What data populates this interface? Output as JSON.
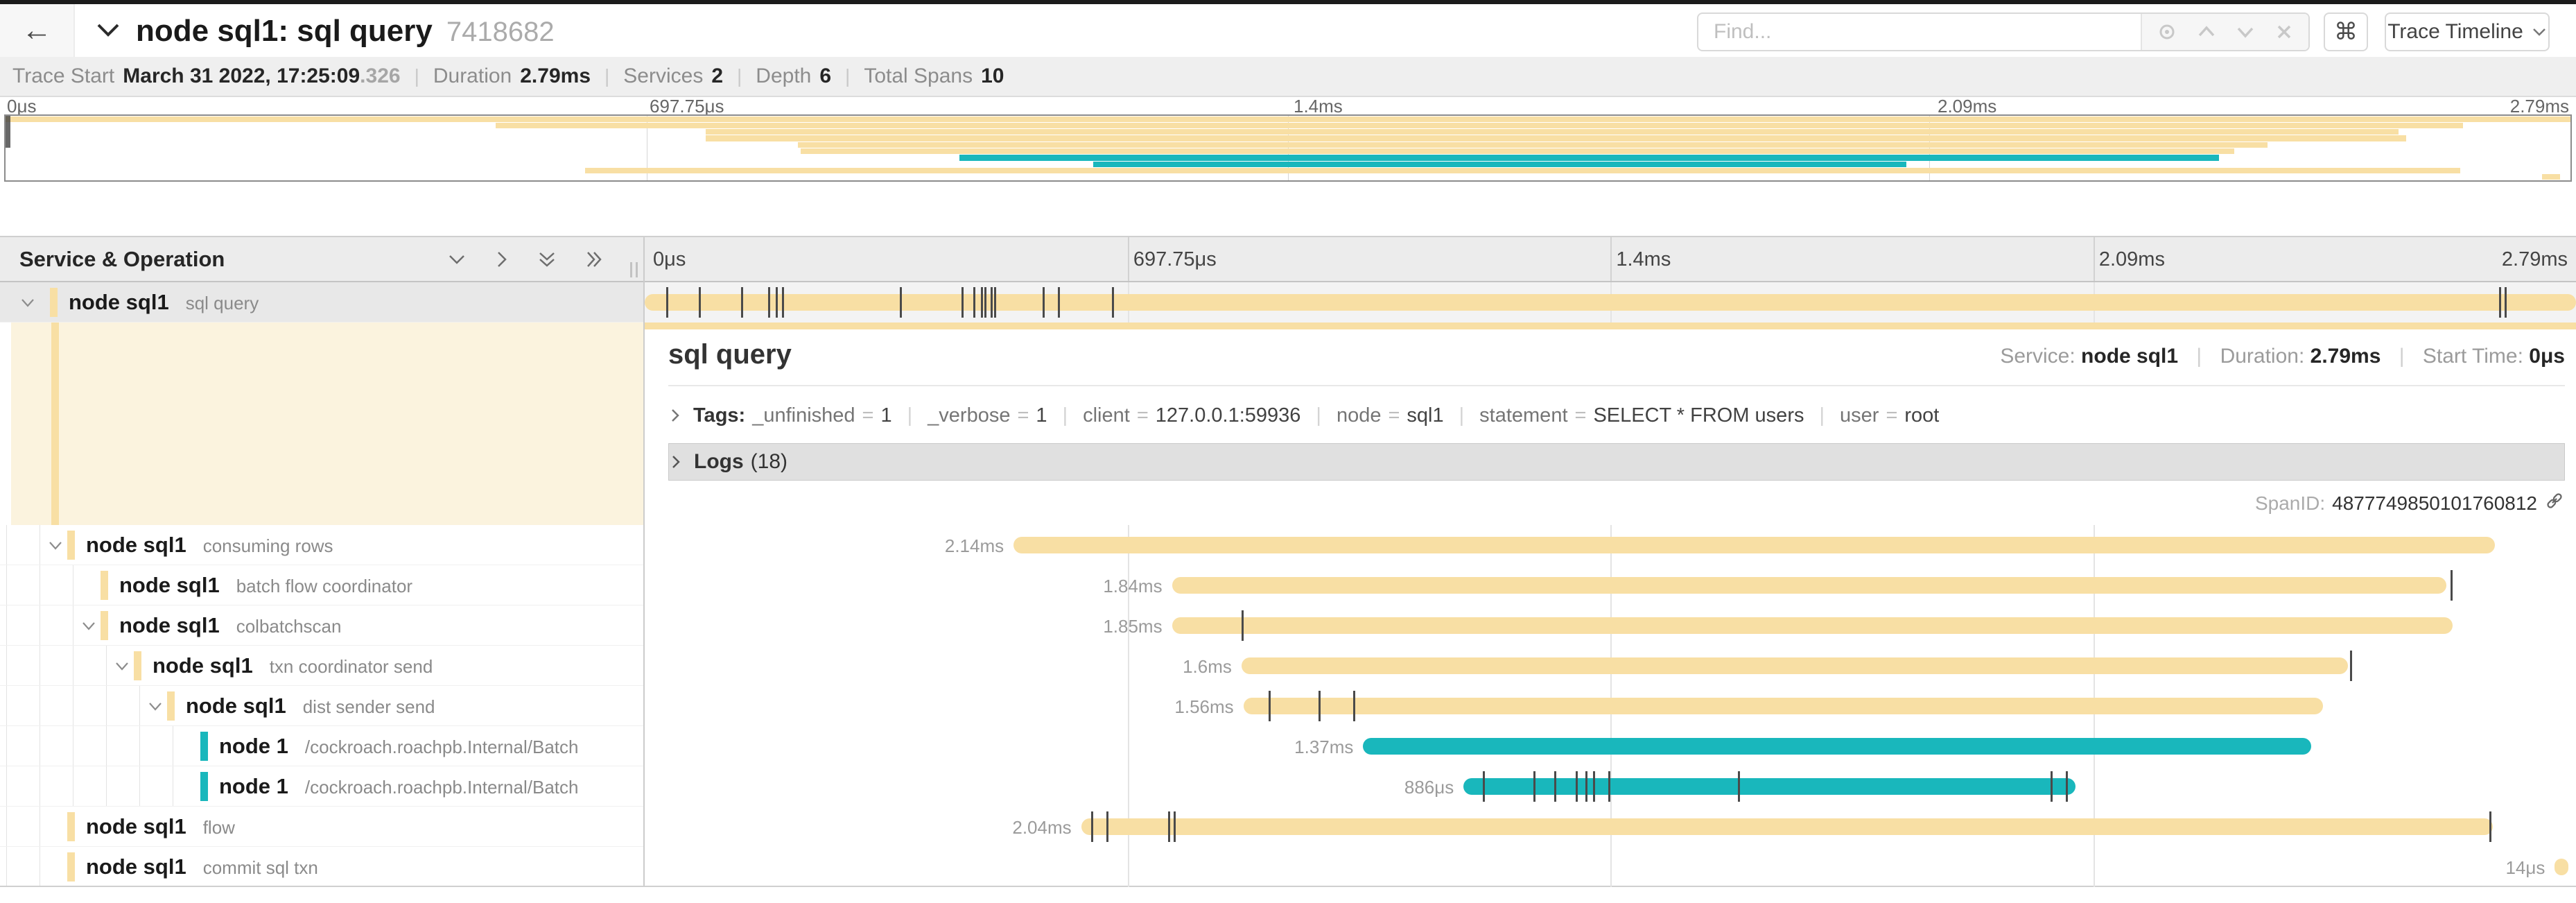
{
  "colors": {
    "yellow": "#F8DFA4",
    "teal": "#19B7BC"
  },
  "header": {
    "back_glyph": "←",
    "title": "node sql1: sql query",
    "trace_id": "7418682",
    "find_placeholder": "Find...",
    "cmd_glyph": "⌘",
    "trace_timeline_label": "Trace Timeline"
  },
  "stats": {
    "items": [
      {
        "label": "Trace Start",
        "value": "March 31 2022, 17:25:09",
        "suffix": ".326"
      },
      {
        "label": "Duration",
        "value": "2.79ms",
        "suffix": ""
      },
      {
        "label": "Services",
        "value": "2",
        "suffix": ""
      },
      {
        "label": "Depth",
        "value": "6",
        "suffix": ""
      },
      {
        "label": "Total Spans",
        "value": "10",
        "suffix": ""
      }
    ]
  },
  "ruler": {
    "ticks": [
      "0μs",
      "697.75μs",
      "1.4ms",
      "2.09ms",
      "2.79ms"
    ]
  },
  "tree": {
    "header_label": "Service & Operation"
  },
  "detail": {
    "title": "sql query",
    "service_label": "Service:",
    "service": "node sql1",
    "duration_label": "Duration:",
    "duration": "2.79ms",
    "start_time_label": "Start Time:",
    "start_time": "0μs",
    "tags_label": "Tags:",
    "tags": [
      {
        "key": "_unfinished",
        "value": "1"
      },
      {
        "key": "_verbose",
        "value": "1"
      },
      {
        "key": "client",
        "value": "127.0.0.1:59936"
      },
      {
        "key": "node",
        "value": "sql1"
      },
      {
        "key": "statement",
        "value": "SELECT * FROM users"
      },
      {
        "key": "user",
        "value": "root"
      }
    ],
    "logs_label": "Logs",
    "logs_count": "(18)",
    "span_id_label": "SpanID:",
    "span_id": "4877749850101760812"
  },
  "misc": {
    "pipe": "|",
    "eq": "="
  },
  "spans": [
    {
      "service": "node sql1",
      "operation": "sql query",
      "depth": 0,
      "expandable": true,
      "color": "yellow",
      "selected": true,
      "start_pct": 0,
      "width_pct": 100,
      "duration_label": "",
      "ticks": [
        1.1,
        2.8,
        5.0,
        6.4,
        6.8,
        7.1,
        13.2,
        16.4,
        17.0,
        17.4,
        17.6,
        17.9,
        18.1,
        20.6,
        21.4,
        24.2,
        96.0,
        96.3
      ]
    },
    {
      "service": "node sql1",
      "operation": "consuming rows",
      "depth": 1,
      "expandable": true,
      "color": "yellow",
      "selected": false,
      "start_pct": 19.1,
      "width_pct": 76.7,
      "duration_label": "2.14ms",
      "ticks": []
    },
    {
      "service": "node sql1",
      "operation": "batch flow coordinator",
      "depth": 2,
      "expandable": false,
      "color": "yellow",
      "selected": false,
      "start_pct": 27.3,
      "width_pct": 66.0,
      "duration_label": "1.84ms",
      "ticks": [
        93.5
      ]
    },
    {
      "service": "node sql1",
      "operation": "colbatchscan",
      "depth": 2,
      "expandable": true,
      "color": "yellow",
      "selected": false,
      "start_pct": 27.3,
      "width_pct": 66.3,
      "duration_label": "1.85ms",
      "ticks": [
        30.9
      ]
    },
    {
      "service": "node sql1",
      "operation": "txn coordinator send",
      "depth": 3,
      "expandable": true,
      "color": "yellow",
      "selected": false,
      "start_pct": 30.9,
      "width_pct": 57.3,
      "duration_label": "1.6ms",
      "ticks": [
        88.3
      ]
    },
    {
      "service": "node sql1",
      "operation": "dist sender send",
      "depth": 4,
      "expandable": true,
      "color": "yellow",
      "selected": false,
      "start_pct": 31.0,
      "width_pct": 55.9,
      "duration_label": "1.56ms",
      "ticks": [
        32.3,
        34.9,
        36.7
      ]
    },
    {
      "service": "node 1",
      "operation": "/cockroach.roachpb.Internal/Batch",
      "depth": 5,
      "expandable": false,
      "color": "teal",
      "selected": false,
      "start_pct": 37.2,
      "width_pct": 49.1,
      "duration_label": "1.37ms",
      "ticks": []
    },
    {
      "service": "node 1",
      "operation": "/cockroach.roachpb.Internal/Batch",
      "depth": 5,
      "expandable": false,
      "color": "teal",
      "selected": false,
      "start_pct": 42.4,
      "width_pct": 31.7,
      "duration_label": "886μs",
      "ticks": [
        43.4,
        46.0,
        47.1,
        48.2,
        48.7,
        49.1,
        49.9,
        56.6,
        72.8,
        73.6
      ]
    },
    {
      "service": "node sql1",
      "operation": "flow",
      "depth": 1,
      "expandable": false,
      "color": "yellow",
      "selected": false,
      "start_pct": 22.6,
      "width_pct": 73.1,
      "duration_label": "2.04ms",
      "ticks": [
        23.1,
        23.9,
        27.1,
        27.4,
        95.5
      ]
    },
    {
      "service": "node sql1",
      "operation": "commit sql txn",
      "depth": 1,
      "expandable": false,
      "color": "yellow",
      "selected": false,
      "start_pct": 98.9,
      "width_pct": 0.7,
      "duration_label": "14μs",
      "ticks": []
    }
  ]
}
